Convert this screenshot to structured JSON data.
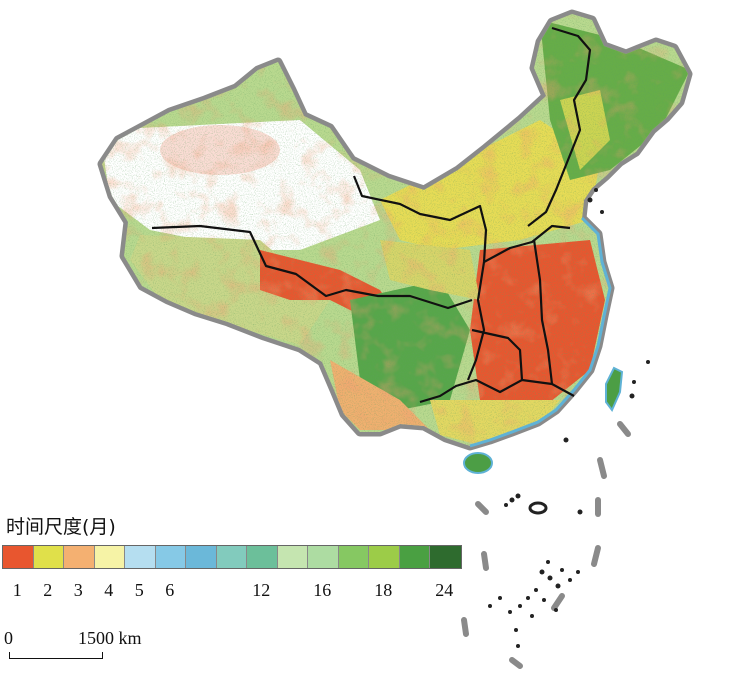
{
  "legend": {
    "title": "时间尺度(月)",
    "colors": [
      "#e8562f",
      "#e0e04a",
      "#f4b071",
      "#f6f3a6",
      "#b5def0",
      "#86c9e6",
      "#6bb8d9",
      "#82cbbd",
      "#6cbf9a",
      "#c5e5b0",
      "#addca2",
      "#86c862",
      "#9ccc48",
      "#4aa042",
      "#2e6b2e"
    ],
    "ticks": [
      {
        "label": "1",
        "index": 0
      },
      {
        "label": "2",
        "index": 1
      },
      {
        "label": "3",
        "index": 2
      },
      {
        "label": "4",
        "index": 3
      },
      {
        "label": "5",
        "index": 4
      },
      {
        "label": "6",
        "index": 5
      },
      {
        "label": "12",
        "index": 8
      },
      {
        "label": "16",
        "index": 10
      },
      {
        "label": "18",
        "index": 12
      },
      {
        "label": "24",
        "index": 14
      }
    ]
  },
  "scale": {
    "start_label": "0",
    "end_label": "1500 km"
  },
  "map_colors": {
    "outline": "#8a8a8a",
    "coast": "#5fb2d6",
    "region_border": "#111111",
    "red": "#e8562f",
    "yellow": "#e6dd55",
    "green": "#4c9e45",
    "light_green": "#a8d08a",
    "dark_green": "#2e6b2e"
  }
}
